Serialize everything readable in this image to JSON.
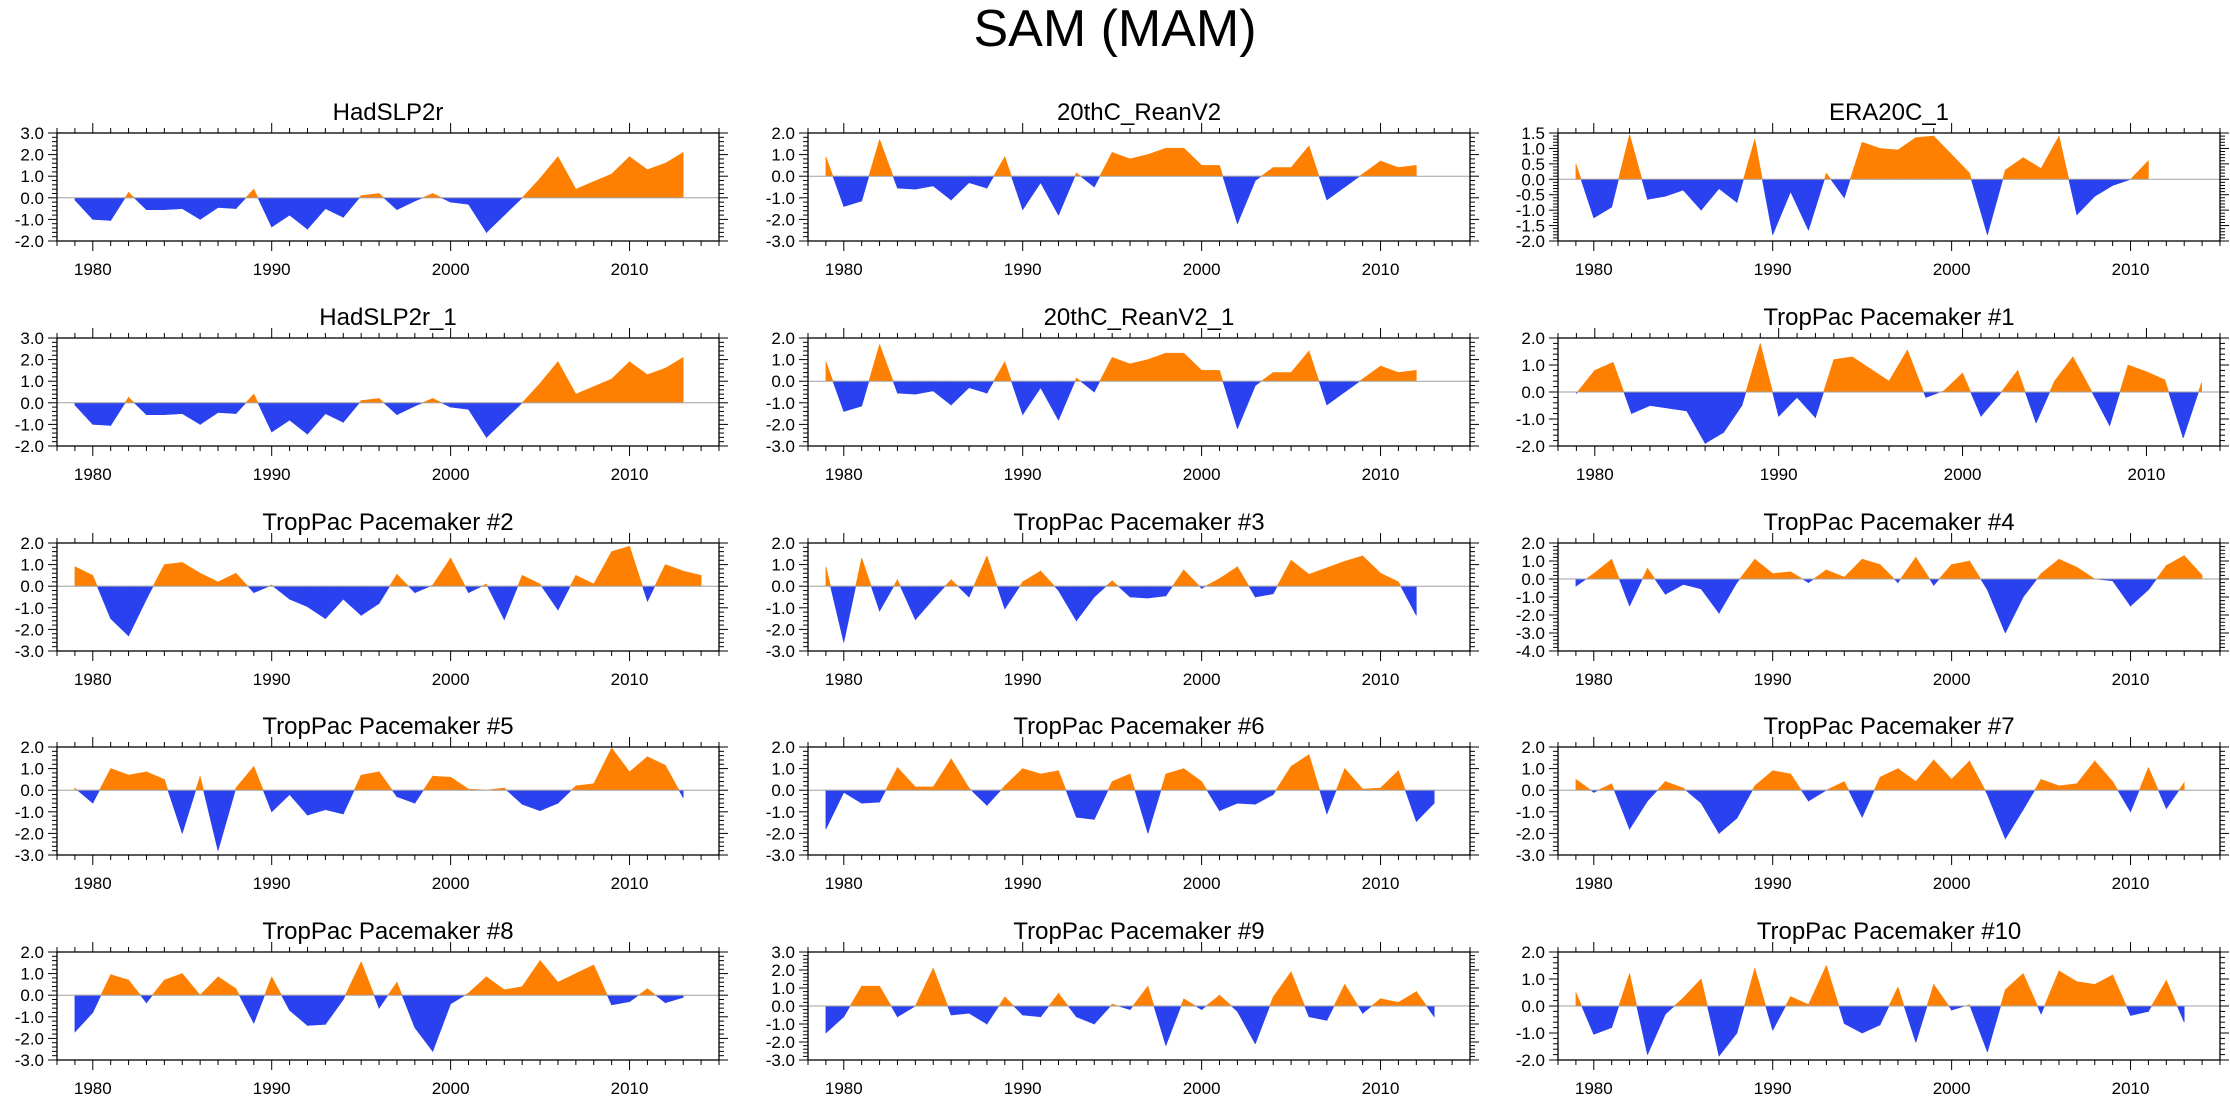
{
  "title": "SAM (MAM)",
  "colors": {
    "positive": "#ff8000",
    "negative": "#2a41f0",
    "axis": "#000000",
    "zero_line": "#a0a0a0"
  },
  "chart_data": [
    {
      "type": "area",
      "title": "HadSLP2r",
      "x_start": 1979,
      "xlim": [
        1978,
        2015
      ],
      "x_ticks": [
        "1980",
        "1990",
        "2000",
        "2010"
      ],
      "ylim": [
        -2.0,
        3.0
      ],
      "y_ticks": [
        "-2.0",
        "-1.0",
        "0.0",
        "1.0",
        "2.0",
        "3.0"
      ],
      "values": [
        -0.1,
        -1.0,
        -1.05,
        0.25,
        -0.55,
        -0.55,
        -0.5,
        -1.0,
        -0.45,
        -0.5,
        0.4,
        -1.35,
        -0.8,
        -1.45,
        -0.5,
        -0.9,
        0.1,
        0.2,
        -0.55,
        -0.15,
        0.2,
        -0.2,
        -0.3,
        -1.6,
        -0.8,
        0.0,
        0.9,
        1.9,
        0.4,
        0.75,
        1.1,
        1.9,
        1.3,
        1.6,
        2.1
      ]
    },
    {
      "type": "area",
      "title": "20thC_ReanV2",
      "x_start": 1979,
      "xlim": [
        1978,
        2015
      ],
      "x_ticks": [
        "1980",
        "1990",
        "2000",
        "2010"
      ],
      "ylim": [
        -3.0,
        2.0
      ],
      "y_ticks": [
        "-3.0",
        "-2.0",
        "-1.0",
        "0.0",
        "1.0",
        "2.0"
      ],
      "values": [
        0.9,
        -1.4,
        -1.15,
        1.7,
        -0.55,
        -0.6,
        -0.45,
        -1.1,
        -0.3,
        -0.55,
        0.9,
        -1.55,
        -0.3,
        -1.8,
        0.15,
        -0.5,
        1.1,
        0.8,
        1.0,
        1.3,
        1.3,
        0.5,
        0.5,
        -2.2,
        -0.2,
        0.4,
        0.4,
        1.4,
        -1.1,
        -0.5,
        0.1,
        0.7,
        0.4,
        0.5
      ]
    },
    {
      "type": "area",
      "title": "ERA20C_1",
      "x_start": 1979,
      "xlim": [
        1978,
        2015
      ],
      "x_ticks": [
        "1980",
        "1990",
        "2000",
        "2010"
      ],
      "ylim": [
        -2.0,
        1.5
      ],
      "y_ticks": [
        "-2.0",
        "-1.5",
        "-1.0",
        "-0.5",
        "0.0",
        "0.5",
        "1.0",
        "1.5"
      ],
      "values": [
        0.5,
        -1.25,
        -0.9,
        1.45,
        -0.65,
        -0.55,
        -0.35,
        -1.0,
        -0.3,
        -0.75,
        1.3,
        -1.8,
        -0.4,
        -1.65,
        0.2,
        -0.6,
        1.2,
        1.0,
        0.95,
        1.35,
        1.4,
        0.8,
        0.2,
        -1.8,
        0.3,
        0.7,
        0.35,
        1.4,
        -1.15,
        -0.55,
        -0.2,
        0.0,
        0.6
      ]
    },
    {
      "type": "area",
      "title": "HadSLP2r_1",
      "x_start": 1979,
      "xlim": [
        1978,
        2015
      ],
      "x_ticks": [
        "1980",
        "1990",
        "2000",
        "2010"
      ],
      "ylim": [
        -2.0,
        3.0
      ],
      "y_ticks": [
        "-2.0",
        "-1.0",
        "0.0",
        "1.0",
        "2.0",
        "3.0"
      ],
      "values": [
        -0.1,
        -1.0,
        -1.05,
        0.25,
        -0.55,
        -0.55,
        -0.5,
        -1.0,
        -0.45,
        -0.5,
        0.4,
        -1.35,
        -0.8,
        -1.45,
        -0.5,
        -0.9,
        0.1,
        0.2,
        -0.55,
        -0.15,
        0.2,
        -0.2,
        -0.3,
        -1.6,
        -0.8,
        0.0,
        0.9,
        1.9,
        0.4,
        0.75,
        1.1,
        1.9,
        1.3,
        1.6,
        2.1
      ]
    },
    {
      "type": "area",
      "title": "20thC_ReanV2_1",
      "x_start": 1979,
      "xlim": [
        1978,
        2015
      ],
      "x_ticks": [
        "1980",
        "1990",
        "2000",
        "2010"
      ],
      "ylim": [
        -3.0,
        2.0
      ],
      "y_ticks": [
        "-3.0",
        "-2.0",
        "-1.0",
        "0.0",
        "1.0",
        "2.0"
      ],
      "values": [
        0.9,
        -1.4,
        -1.15,
        1.7,
        -0.55,
        -0.6,
        -0.45,
        -1.1,
        -0.3,
        -0.55,
        0.9,
        -1.55,
        -0.3,
        -1.8,
        0.15,
        -0.5,
        1.1,
        0.8,
        1.0,
        1.3,
        1.3,
        0.5,
        0.5,
        -2.2,
        -0.2,
        0.4,
        0.4,
        1.4,
        -1.1,
        -0.5,
        0.1,
        0.7,
        0.4,
        0.5
      ]
    },
    {
      "type": "area",
      "title": "TropPac Pacemaker #1",
      "x_start": 1979,
      "xlim": [
        1978,
        2014
      ],
      "x_ticks": [
        "1980",
        "1990",
        "2000",
        "2010"
      ],
      "ylim": [
        -2.0,
        2.0
      ],
      "y_ticks": [
        "-2.0",
        "-1.0",
        "0.0",
        "1.0",
        "2.0"
      ],
      "values": [
        -0.05,
        0.8,
        1.1,
        -0.8,
        -0.5,
        -0.6,
        -0.7,
        -1.9,
        -1.5,
        -0.5,
        1.8,
        -0.9,
        -0.2,
        -0.95,
        1.2,
        1.3,
        0.85,
        0.4,
        1.55,
        -0.2,
        0.05,
        0.7,
        -0.9,
        -0.1,
        0.8,
        -1.15,
        0.4,
        1.3,
        0.05,
        -1.25,
        1.0,
        0.75,
        0.45,
        -1.7,
        0.35
      ]
    },
    {
      "type": "area",
      "title": "TropPac Pacemaker #2",
      "x_start": 1979,
      "xlim": [
        1978,
        2015
      ],
      "x_ticks": [
        "1980",
        "1990",
        "2000",
        "2010"
      ],
      "ylim": [
        -3.0,
        2.0
      ],
      "y_ticks": [
        "-3.0",
        "-2.0",
        "-1.0",
        "0.0",
        "1.0",
        "2.0"
      ],
      "values": [
        0.9,
        0.5,
        -1.5,
        -2.3,
        -0.6,
        1.0,
        1.1,
        0.6,
        0.2,
        0.6,
        -0.3,
        0.05,
        -0.6,
        -0.95,
        -1.5,
        -0.6,
        -1.35,
        -0.8,
        0.55,
        -0.3,
        0.05,
        1.3,
        -0.3,
        0.1,
        -1.55,
        0.5,
        0.1,
        -1.1,
        0.5,
        0.1,
        1.6,
        1.85,
        -0.7,
        1.0,
        0.7,
        0.5
      ]
    },
    {
      "type": "area",
      "title": "TropPac Pacemaker #3",
      "x_start": 1979,
      "xlim": [
        1978,
        2015
      ],
      "x_ticks": [
        "1980",
        "1990",
        "2000",
        "2010"
      ],
      "ylim": [
        -3.0,
        2.0
      ],
      "y_ticks": [
        "-3.0",
        "-2.0",
        "-1.0",
        "0.0",
        "1.0",
        "2.0"
      ],
      "values": [
        0.9,
        -2.6,
        1.3,
        -1.15,
        0.3,
        -1.55,
        -0.6,
        0.3,
        -0.5,
        1.4,
        -1.05,
        0.2,
        0.7,
        -0.2,
        -1.6,
        -0.5,
        0.25,
        -0.5,
        -0.55,
        -0.45,
        0.75,
        -0.1,
        0.35,
        0.9,
        -0.5,
        -0.35,
        1.2,
        0.55,
        0.85,
        1.15,
        1.4,
        0.6,
        0.2,
        -1.35
      ]
    },
    {
      "type": "area",
      "title": "TropPac Pacemaker #4",
      "x_start": 1979,
      "xlim": [
        1978,
        2015
      ],
      "x_ticks": [
        "1980",
        "1990",
        "2000",
        "2010"
      ],
      "ylim": [
        -4.0,
        2.0
      ],
      "y_ticks": [
        "-4.0",
        "-3.0",
        "-2.0",
        "-1.0",
        "0.0",
        "1.0",
        "2.0"
      ],
      "values": [
        -0.4,
        0.3,
        1.1,
        -1.5,
        0.6,
        -0.85,
        -0.3,
        -0.55,
        -1.9,
        -0.2,
        1.1,
        0.3,
        0.4,
        -0.2,
        0.5,
        0.1,
        1.1,
        0.8,
        -0.2,
        1.2,
        -0.35,
        0.8,
        1.0,
        -0.6,
        -3.0,
        -1.0,
        0.3,
        1.1,
        0.65,
        0.0,
        -0.1,
        -1.5,
        -0.6,
        0.75,
        1.3,
        0.2
      ]
    },
    {
      "type": "area",
      "title": "TropPac Pacemaker #5",
      "x_start": 1979,
      "xlim": [
        1978,
        2015
      ],
      "x_ticks": [
        "1980",
        "1990",
        "2000",
        "2010"
      ],
      "ylim": [
        -3.0,
        2.0
      ],
      "y_ticks": [
        "-3.0",
        "-2.0",
        "-1.0",
        "0.0",
        "1.0",
        "2.0"
      ],
      "values": [
        0.1,
        -0.6,
        1.0,
        0.7,
        0.85,
        0.5,
        -2.0,
        0.65,
        -2.8,
        0.1,
        1.1,
        -1.0,
        -0.2,
        -1.15,
        -0.9,
        -1.1,
        0.7,
        0.85,
        -0.3,
        -0.6,
        0.65,
        0.6,
        0.05,
        0.0,
        0.1,
        -0.65,
        -0.95,
        -0.6,
        0.2,
        0.3,
        1.95,
        0.85,
        1.55,
        1.15,
        -0.35
      ]
    },
    {
      "type": "area",
      "title": "TropPac Pacemaker #6",
      "x_start": 1979,
      "xlim": [
        1978,
        2015
      ],
      "x_ticks": [
        "1980",
        "1990",
        "2000",
        "2010"
      ],
      "ylim": [
        -3.0,
        2.0
      ],
      "y_ticks": [
        "-3.0",
        "-2.0",
        "-1.0",
        "0.0",
        "1.0",
        "2.0"
      ],
      "values": [
        -1.8,
        -0.1,
        -0.6,
        -0.55,
        1.05,
        0.15,
        0.15,
        1.45,
        0.1,
        -0.7,
        0.2,
        1.0,
        0.75,
        0.9,
        -1.25,
        -1.35,
        0.4,
        0.75,
        -2.0,
        0.75,
        1.0,
        0.4,
        -0.95,
        -0.6,
        -0.65,
        -0.2,
        1.1,
        1.65,
        -1.1,
        1.0,
        0.05,
        0.1,
        0.9,
        -1.45,
        -0.6
      ]
    },
    {
      "type": "area",
      "title": "TropPac Pacemaker #7",
      "x_start": 1979,
      "xlim": [
        1978,
        2015
      ],
      "x_ticks": [
        "1980",
        "1990",
        "2000",
        "2010"
      ],
      "ylim": [
        -3.0,
        2.0
      ],
      "y_ticks": [
        "-3.0",
        "-2.0",
        "-1.0",
        "0.0",
        "1.0",
        "2.0"
      ],
      "values": [
        0.5,
        -0.1,
        0.3,
        -1.8,
        -0.5,
        0.4,
        0.1,
        -0.6,
        -2.0,
        -1.3,
        0.2,
        0.9,
        0.75,
        -0.5,
        0.0,
        0.4,
        -1.25,
        0.6,
        1.0,
        0.4,
        1.4,
        0.5,
        1.35,
        -0.2,
        -2.25,
        -0.9,
        0.5,
        0.2,
        0.3,
        1.35,
        0.4,
        -1.0,
        1.05,
        -0.85,
        0.35
      ]
    },
    {
      "type": "area",
      "title": "TropPac Pacemaker #8",
      "x_start": 1979,
      "xlim": [
        1978,
        2015
      ],
      "x_ticks": [
        "1980",
        "1990",
        "2000",
        "2010"
      ],
      "ylim": [
        -3.0,
        2.0
      ],
      "y_ticks": [
        "-3.0",
        "-2.0",
        "-1.0",
        "0.0",
        "1.0",
        "2.0"
      ],
      "values": [
        -1.7,
        -0.8,
        0.95,
        0.7,
        -0.35,
        0.7,
        1.0,
        0.0,
        0.85,
        0.3,
        -1.3,
        0.85,
        -0.7,
        -1.4,
        -1.35,
        -0.2,
        1.55,
        -0.6,
        0.6,
        -1.5,
        -2.6,
        -0.4,
        0.1,
        0.85,
        0.25,
        0.4,
        1.6,
        0.6,
        1.0,
        1.4,
        -0.45,
        -0.3,
        0.3,
        -0.35,
        -0.1
      ]
    },
    {
      "type": "area",
      "title": "TropPac Pacemaker #9",
      "x_start": 1979,
      "xlim": [
        1978,
        2015
      ],
      "x_ticks": [
        "1980",
        "1990",
        "2000",
        "2010"
      ],
      "ylim": [
        -3.0,
        3.0
      ],
      "y_ticks": [
        "-3.0",
        "-2.0",
        "-1.0",
        "0.0",
        "1.0",
        "2.0",
        "3.0"
      ],
      "values": [
        -1.5,
        -0.6,
        1.1,
        1.1,
        -0.6,
        0.0,
        2.1,
        -0.5,
        -0.4,
        -1.0,
        0.5,
        -0.5,
        -0.6,
        0.7,
        -0.6,
        -1.0,
        0.1,
        -0.2,
        1.1,
        -2.2,
        0.4,
        -0.2,
        0.6,
        -0.3,
        -2.1,
        0.5,
        1.9,
        -0.6,
        -0.8,
        1.2,
        -0.4,
        0.4,
        0.2,
        0.8,
        -0.6
      ]
    },
    {
      "type": "area",
      "title": "TropPac Pacemaker #10",
      "x_start": 1979,
      "xlim": [
        1978,
        2015
      ],
      "x_ticks": [
        "1980",
        "1990",
        "2000",
        "2010"
      ],
      "ylim": [
        -2.0,
        2.0
      ],
      "y_ticks": [
        "-2.0",
        "-1.0",
        "0.0",
        "1.0",
        "2.0"
      ],
      "values": [
        0.5,
        -1.05,
        -0.8,
        1.2,
        -1.8,
        -0.3,
        0.3,
        1.0,
        -1.85,
        -1.0,
        1.4,
        -0.9,
        0.35,
        0.05,
        1.5,
        -0.65,
        -1.0,
        -0.7,
        0.7,
        -1.35,
        0.8,
        -0.15,
        0.05,
        -1.7,
        0.6,
        1.2,
        -0.3,
        1.3,
        0.9,
        0.8,
        1.15,
        -0.35,
        -0.2,
        0.95,
        -0.6
      ]
    }
  ]
}
